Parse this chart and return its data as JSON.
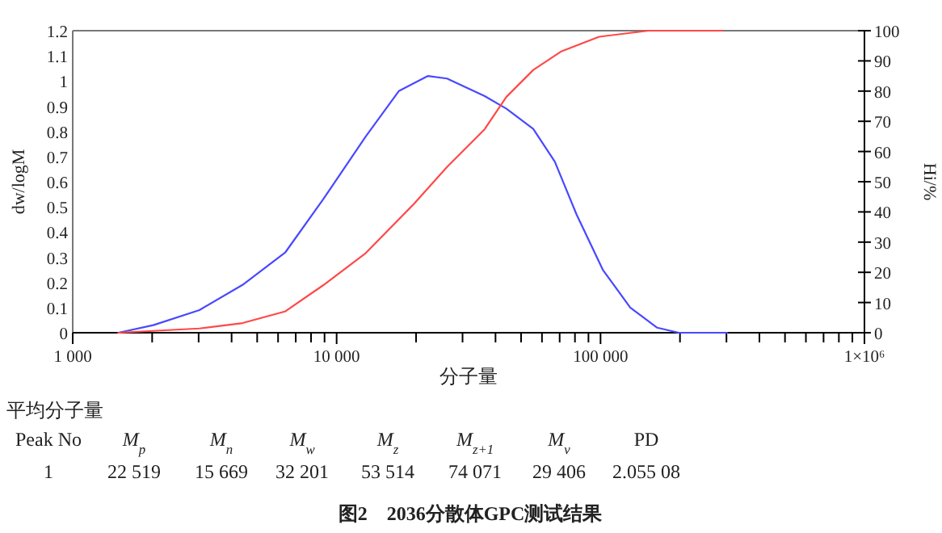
{
  "chart_data": {
    "type": "line",
    "xlabel": "分子量",
    "ylabel": "dw/logM",
    "y2label": "Hi/%",
    "log": "x",
    "grid": false,
    "xlim": [
      1000,
      1000000
    ],
    "xticks": [
      {
        "value": 1000,
        "label": "1 000"
      },
      {
        "value": 2000,
        "label": null
      },
      {
        "value": 3000,
        "label": null
      },
      {
        "value": 4000,
        "label": null
      },
      {
        "value": 5000,
        "label": null
      },
      {
        "value": 6000,
        "label": null
      },
      {
        "value": 7000,
        "label": null
      },
      {
        "value": 8000,
        "label": null
      },
      {
        "value": 9000,
        "label": null
      },
      {
        "value": 10000,
        "label": "10 000"
      },
      {
        "value": 20000,
        "label": null
      },
      {
        "value": 30000,
        "label": null
      },
      {
        "value": 40000,
        "label": null
      },
      {
        "value": 50000,
        "label": null
      },
      {
        "value": 60000,
        "label": null
      },
      {
        "value": 70000,
        "label": null
      },
      {
        "value": 80000,
        "label": null
      },
      {
        "value": 90000,
        "label": null
      },
      {
        "value": 100000,
        "label": "100 000"
      },
      {
        "value": 200000,
        "label": null
      },
      {
        "value": 300000,
        "label": null
      },
      {
        "value": 400000,
        "label": null
      },
      {
        "value": 500000,
        "label": null
      },
      {
        "value": 600000,
        "label": null
      },
      {
        "value": 700000,
        "label": null
      },
      {
        "value": 800000,
        "label": null
      },
      {
        "value": 900000,
        "label": null
      },
      {
        "value": 1000000,
        "label": "1×10⁶"
      }
    ],
    "ylim": [
      0,
      1.2
    ],
    "yticks": [
      0,
      0.1,
      0.2,
      0.3,
      0.4,
      0.5,
      0.6,
      0.7,
      0.8,
      0.9,
      1,
      1.1,
      1.2
    ],
    "y2lim": [
      0,
      100
    ],
    "y2ticks": [
      0,
      10,
      20,
      30,
      40,
      50,
      60,
      70,
      80,
      90,
      100
    ],
    "series": [
      {
        "color": "#4848ff",
        "x": [
          1490,
          2020,
          3020,
          4400,
          6400,
          8890,
          12900,
          17200,
          22200,
          26200,
          36400,
          44000,
          55600,
          67100,
          81100,
          102000,
          129600,
          164000,
          198000,
          302000
        ],
        "values": [
          0,
          0.03,
          0.09,
          0.19,
          0.32,
          0.53,
          0.78,
          0.96,
          1.02,
          1.01,
          0.94,
          0.89,
          0.81,
          0.68,
          0.47,
          0.25,
          0.1,
          0.02,
          0,
          0
        ]
      },
      {
        "color": "#ff4848",
        "axis": "y2",
        "x": [
          1490,
          3020,
          4400,
          6400,
          8890,
          12900,
          19500,
          26200,
          36400,
          44000,
          55600,
          71200,
          98800,
          152000,
          290000
        ],
        "values": [
          0,
          1.4,
          3.2,
          7.1,
          15.7,
          26.4,
          42.4,
          54.9,
          67.4,
          78.1,
          87,
          93.2,
          98,
          100,
          100
        ]
      }
    ],
    "annotations": [
      "平均分子量",
      "Peak No",
      "M$_{p}$",
      "M$_{n}$",
      "M$_{w}$",
      "M$_{z}$",
      "M$_{z+1}$",
      "M$_{v}$",
      "PD",
      "1",
      "22 519",
      "15 669",
      "32 201",
      "53 514",
      "74 071",
      "29 406",
      "2.055 08",
      "图2　2036分散体GPC测试结果"
    ]
  }
}
